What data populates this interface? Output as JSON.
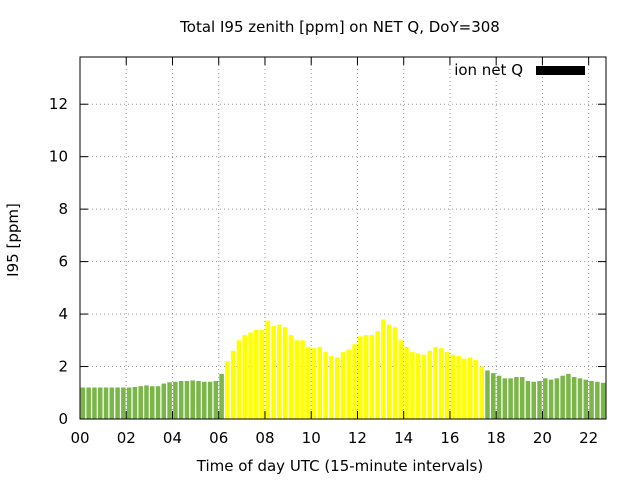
{
  "chart_data": {
    "type": "bar",
    "title": "Total I95 zenith [ppm] on NET Q, DoY=308",
    "xlabel": "Time of day UTC (15-minute intervals)",
    "ylabel": "I95 [ppm]",
    "xlim": [
      0,
      22.75
    ],
    "ylim": [
      0,
      13.8
    ],
    "x_ticks": [
      "00",
      "02",
      "04",
      "06",
      "08",
      "10",
      "12",
      "14",
      "16",
      "18",
      "20",
      "22"
    ],
    "y_ticks": [
      "0",
      "2",
      "4",
      "6",
      "8",
      "10",
      "12"
    ],
    "grid": true,
    "legend_position": "top-right",
    "legend": [
      {
        "label": "ion net Q",
        "color": "#000000"
      }
    ],
    "colors": {
      "green": "#7ab648",
      "yellow": "#ffff00"
    },
    "interval_hours": 0.25,
    "values": [
      1.2,
      1.2,
      1.2,
      1.2,
      1.2,
      1.2,
      1.2,
      1.2,
      1.2,
      1.22,
      1.25,
      1.28,
      1.25,
      1.25,
      1.35,
      1.4,
      1.42,
      1.45,
      1.45,
      1.47,
      1.45,
      1.42,
      1.42,
      1.45,
      1.72,
      2.2,
      2.6,
      3.0,
      3.2,
      3.3,
      3.4,
      3.4,
      3.75,
      3.55,
      3.6,
      3.5,
      3.2,
      3.0,
      3.0,
      2.75,
      2.7,
      2.75,
      2.55,
      2.4,
      2.35,
      2.55,
      2.65,
      2.85,
      3.15,
      3.2,
      3.2,
      3.35,
      3.8,
      3.6,
      3.5,
      3.0,
      2.75,
      2.55,
      2.5,
      2.45,
      2.6,
      2.75,
      2.7,
      2.55,
      2.45,
      2.4,
      2.3,
      2.35,
      2.25,
      2.0,
      1.85,
      1.75,
      1.65,
      1.55,
      1.55,
      1.6,
      1.6,
      1.45,
      1.42,
      1.45,
      1.55,
      1.5,
      1.55,
      1.65,
      1.72,
      1.6,
      1.55,
      1.5,
      1.45,
      1.42,
      1.38
    ],
    "bar_colors": [
      "green",
      "green",
      "green",
      "green",
      "green",
      "green",
      "green",
      "green",
      "green",
      "green",
      "green",
      "green",
      "green",
      "green",
      "green",
      "green",
      "green",
      "green",
      "green",
      "green",
      "green",
      "green",
      "green",
      "green",
      "green",
      "yellow",
      "yellow",
      "yellow",
      "yellow",
      "yellow",
      "yellow",
      "yellow",
      "yellow",
      "yellow",
      "yellow",
      "yellow",
      "yellow",
      "yellow",
      "yellow",
      "yellow",
      "yellow",
      "yellow",
      "yellow",
      "yellow",
      "yellow",
      "yellow",
      "yellow",
      "yellow",
      "yellow",
      "yellow",
      "yellow",
      "yellow",
      "yellow",
      "yellow",
      "yellow",
      "yellow",
      "yellow",
      "yellow",
      "yellow",
      "yellow",
      "yellow",
      "yellow",
      "yellow",
      "yellow",
      "yellow",
      "yellow",
      "yellow",
      "yellow",
      "yellow",
      "yellow",
      "green",
      "green",
      "green",
      "green",
      "green",
      "green",
      "green",
      "green",
      "green",
      "green",
      "green",
      "green",
      "green",
      "green",
      "green",
      "green",
      "green",
      "green",
      "green",
      "green",
      "green"
    ]
  }
}
